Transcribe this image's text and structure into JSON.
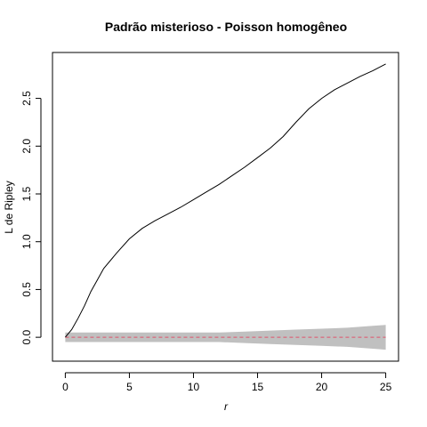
{
  "chart_data": {
    "type": "line",
    "title": "Padrão misterioso - Poisson homogêneo",
    "xlabel": "r",
    "ylabel": "L de Ripley",
    "xlim": [
      -1,
      26
    ],
    "ylim": [
      -0.25,
      2.98
    ],
    "x_ticks": [
      0,
      5,
      10,
      15,
      20,
      25
    ],
    "y_ticks": [
      0.0,
      0.5,
      1.0,
      1.5,
      2.0,
      2.5
    ],
    "x_tick_labels": [
      "0",
      "5",
      "10",
      "15",
      "20",
      "25"
    ],
    "y_tick_labels": [
      "0.0",
      "0.5",
      "1.0",
      "1.5",
      "2.0",
      "2.5"
    ],
    "grid": false,
    "legend": "none",
    "colors": {
      "observed": "#000000",
      "envelope": "#c0c0c0",
      "theoretical": "#df536b"
    },
    "observed": {
      "x": [
        0,
        0.5,
        1,
        1.5,
        2,
        2.5,
        3,
        4,
        5,
        6,
        7,
        8,
        9,
        10,
        11,
        12,
        13,
        14,
        15,
        16,
        17,
        18,
        19,
        20,
        21,
        22,
        23,
        24,
        25
      ],
      "y": [
        0.0,
        0.08,
        0.2,
        0.33,
        0.48,
        0.6,
        0.72,
        0.88,
        1.03,
        1.14,
        1.22,
        1.29,
        1.36,
        1.44,
        1.52,
        1.6,
        1.69,
        1.78,
        1.88,
        1.98,
        2.1,
        2.25,
        2.39,
        2.5,
        2.59,
        2.66,
        2.73,
        2.79,
        2.86
      ]
    },
    "envelope": {
      "x": [
        0,
        2,
        4,
        6,
        8,
        10,
        12,
        14,
        16,
        18,
        20,
        22,
        24,
        25
      ],
      "upper": [
        0.05,
        0.05,
        0.05,
        0.05,
        0.05,
        0.05,
        0.05,
        0.06,
        0.07,
        0.08,
        0.09,
        0.1,
        0.12,
        0.13
      ],
      "lower": [
        -0.05,
        -0.05,
        -0.05,
        -0.05,
        -0.05,
        -0.05,
        -0.05,
        -0.06,
        -0.07,
        -0.08,
        -0.09,
        -0.1,
        -0.12,
        -0.13
      ]
    },
    "theoretical": {
      "x": [
        0,
        25
      ],
      "y": [
        0,
        0
      ]
    }
  }
}
